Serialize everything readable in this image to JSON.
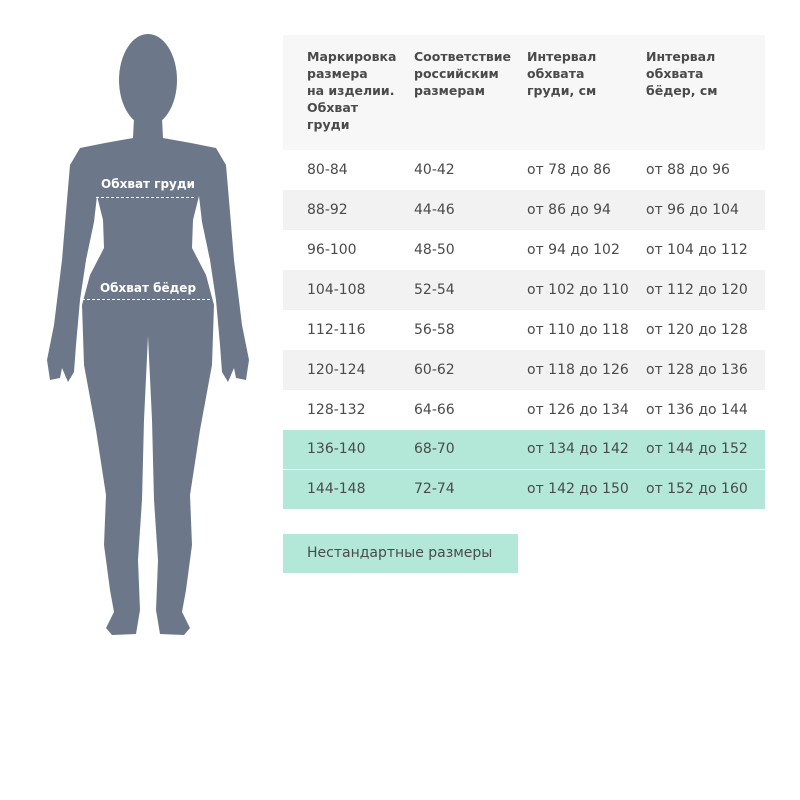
{
  "figure": {
    "chest_label": "Обхват груди",
    "hips_label": "Обхват бёдер",
    "color": "#6c788a"
  },
  "table": {
    "headers": [
      "Маркировка\nразмера\nна изделии.\nОбхват\nгруди",
      "Соответствие\nроссийским\nразмерам",
      "Интервал\nобхвата\nгруди, см",
      "Интервал\nобхвата\nбёдер, см"
    ],
    "rows": [
      [
        "80-84",
        "40-42",
        "от 78 до 86",
        "от 88 до 96"
      ],
      [
        "88-92",
        "44-46",
        "от 86 до 94",
        "от 96 до 104"
      ],
      [
        "96-100",
        "48-50",
        "от 94 до 102",
        "от 104 до 112"
      ],
      [
        "104-108",
        "52-54",
        "от 102 до 110",
        "от 112 до 120"
      ],
      [
        "112-116",
        "56-58",
        "от 110 до 118",
        "от 120 до 128"
      ],
      [
        "120-124",
        "60-62",
        "от 118 до 126",
        "от 128 до 136"
      ],
      [
        "128-132",
        "64-66",
        "от 126 до 134",
        "от 136 до 144"
      ],
      [
        "136-140",
        "68-70",
        "от 134 до 142",
        "от 144 до 152"
      ],
      [
        "144-148",
        "72-74",
        "от 142 до 150",
        "от 152 до 160"
      ]
    ],
    "highlighted_rows": [
      7,
      8
    ],
    "highlight_color": "#b3e8d8"
  },
  "button": {
    "label": "Нестандартные размеры"
  }
}
